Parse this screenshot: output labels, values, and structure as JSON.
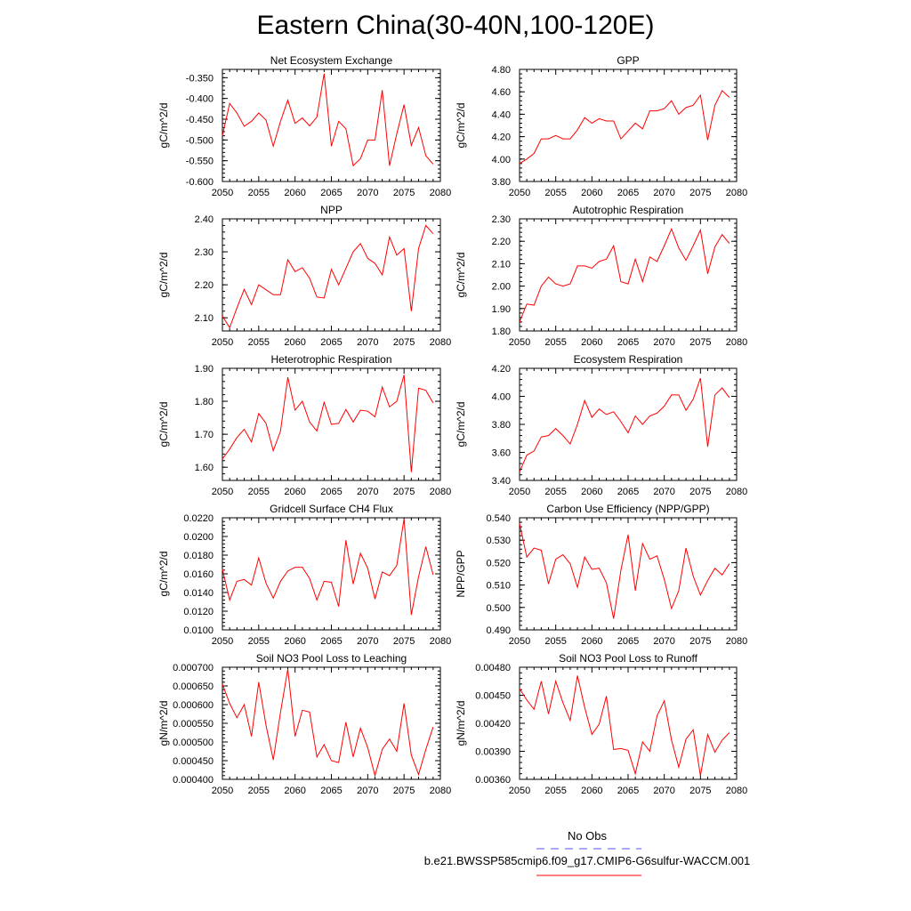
{
  "figure": {
    "title": "Eastern China(30-40N,100-120E)"
  },
  "colors": {
    "series": "#ff0000",
    "obs": "#5050ff"
  },
  "legend": {
    "entries": [
      {
        "label": "No Obs",
        "color": "#5050ff",
        "style": "dashed"
      },
      {
        "label": "b.e21.BWSSP585cmip6.f09_g17.CMIP6-G6sulfur-WACCM.001",
        "color": "#ff0000",
        "style": "solid"
      }
    ]
  },
  "chart_data": [
    {
      "type": "line",
      "title": "Net Ecosystem Exchange",
      "ylabel": "gC/m^2/d",
      "xlim": [
        2050,
        2080
      ],
      "xticks": [
        "2050",
        "2055",
        "2060",
        "2065",
        "2070",
        "2075",
        "2080"
      ],
      "ylim": [
        -0.6,
        -0.33
      ],
      "yticks": [
        "-0.350",
        "-0.400",
        "-0.450",
        "-0.500",
        "-0.550",
        "-0.600"
      ],
      "ytick_values": [
        -0.35,
        -0.4,
        -0.45,
        -0.5,
        -0.55,
        -0.6
      ],
      "x_start": 2050,
      "values": [
        -0.49,
        -0.412,
        -0.435,
        -0.467,
        -0.455,
        -0.435,
        -0.452,
        -0.515,
        -0.455,
        -0.404,
        -0.46,
        -0.447,
        -0.466,
        -0.445,
        -0.34,
        -0.515,
        -0.455,
        -0.473,
        -0.562,
        -0.545,
        -0.5,
        -0.5,
        -0.38,
        -0.562,
        -0.485,
        -0.415,
        -0.513,
        -0.47,
        -0.538,
        -0.558
      ]
    },
    {
      "type": "line",
      "title": "GPP",
      "ylabel": "gC/m^2/d",
      "xlim": [
        2050,
        2080
      ],
      "xticks": [
        "2050",
        "2055",
        "2060",
        "2065",
        "2070",
        "2075",
        "2080"
      ],
      "ylim": [
        3.8,
        4.8
      ],
      "yticks": [
        "4.80",
        "4.60",
        "4.40",
        "4.20",
        "4.00",
        "3.80"
      ],
      "ytick_values": [
        4.8,
        4.6,
        4.4,
        4.2,
        4.0,
        3.8
      ],
      "x_start": 2050,
      "values": [
        3.96,
        4.0,
        4.05,
        4.18,
        4.18,
        4.21,
        4.18,
        4.18,
        4.26,
        4.37,
        4.32,
        4.36,
        4.34,
        4.34,
        4.18,
        4.25,
        4.32,
        4.27,
        4.43,
        4.43,
        4.45,
        4.52,
        4.4,
        4.46,
        4.48,
        4.57,
        4.17,
        4.48,
        4.61,
        4.55
      ]
    },
    {
      "type": "line",
      "title": "NPP",
      "ylabel": "gC/m^2/d",
      "xlim": [
        2050,
        2080
      ],
      "xticks": [
        "2050",
        "2055",
        "2060",
        "2065",
        "2070",
        "2075",
        "2080"
      ],
      "ylim": [
        2.06,
        2.4
      ],
      "yticks": [
        "2.40",
        "2.30",
        "2.20",
        "2.10"
      ],
      "ytick_values": [
        2.4,
        2.3,
        2.2,
        2.1
      ],
      "x_start": 2050,
      "values": [
        2.105,
        2.07,
        2.13,
        2.186,
        2.14,
        2.2,
        2.185,
        2.17,
        2.17,
        2.276,
        2.24,
        2.252,
        2.22,
        2.163,
        2.16,
        2.247,
        2.2,
        2.25,
        2.3,
        2.325,
        2.28,
        2.265,
        2.23,
        2.345,
        2.29,
        2.31,
        2.12,
        2.31,
        2.38,
        2.355
      ]
    },
    {
      "type": "line",
      "title": "Autotrophic Respiration",
      "ylabel": "gC/m^2/d",
      "xlim": [
        2050,
        2080
      ],
      "xticks": [
        "2050",
        "2055",
        "2060",
        "2065",
        "2070",
        "2075",
        "2080"
      ],
      "ylim": [
        1.8,
        2.3
      ],
      "yticks": [
        "2.30",
        "2.20",
        "2.10",
        "2.00",
        "1.90",
        "1.80"
      ],
      "ytick_values": [
        2.3,
        2.2,
        2.1,
        2.0,
        1.9,
        1.8
      ],
      "x_start": 2050,
      "values": [
        1.84,
        1.92,
        1.915,
        2.0,
        2.04,
        2.01,
        2.0,
        2.01,
        2.09,
        2.09,
        2.08,
        2.11,
        2.12,
        2.18,
        2.02,
        2.01,
        2.12,
        2.02,
        2.13,
        2.11,
        2.18,
        2.255,
        2.17,
        2.115,
        2.18,
        2.25,
        2.055,
        2.175,
        2.23,
        2.19
      ]
    },
    {
      "type": "line",
      "title": "Heterotrophic Respiration",
      "ylabel": "gC/m^2/d",
      "xlim": [
        2050,
        2080
      ],
      "xticks": [
        "2050",
        "2055",
        "2060",
        "2065",
        "2070",
        "2075",
        "2080"
      ],
      "ylim": [
        1.56,
        1.9
      ],
      "yticks": [
        "1.90",
        "1.80",
        "1.70",
        "1.60"
      ],
      "ytick_values": [
        1.9,
        1.8,
        1.7,
        1.6
      ],
      "x_start": 2050,
      "values": [
        1.625,
        1.655,
        1.69,
        1.715,
        1.677,
        1.763,
        1.733,
        1.65,
        1.71,
        1.873,
        1.773,
        1.8,
        1.737,
        1.71,
        1.797,
        1.73,
        1.733,
        1.775,
        1.737,
        1.773,
        1.77,
        1.753,
        1.843,
        1.783,
        1.8,
        1.88,
        1.585,
        1.84,
        1.833,
        1.795
      ]
    },
    {
      "type": "line",
      "title": "Ecosystem Respiration",
      "ylabel": "gC/m^2/d",
      "xlim": [
        2050,
        2080
      ],
      "xticks": [
        "2050",
        "2055",
        "2060",
        "2065",
        "2070",
        "2075",
        "2080"
      ],
      "ylim": [
        3.4,
        4.2
      ],
      "yticks": [
        "4.20",
        "4.00",
        "3.80",
        "3.60",
        "3.40"
      ],
      "ytick_values": [
        4.2,
        4.0,
        3.8,
        3.6,
        3.4
      ],
      "x_start": 2050,
      "values": [
        3.46,
        3.58,
        3.61,
        3.71,
        3.72,
        3.77,
        3.72,
        3.66,
        3.8,
        3.97,
        3.85,
        3.91,
        3.87,
        3.89,
        3.82,
        3.74,
        3.86,
        3.8,
        3.86,
        3.88,
        3.93,
        4.01,
        4.01,
        3.9,
        3.98,
        4.13,
        3.64,
        4.01,
        4.06,
        3.99
      ]
    },
    {
      "type": "line",
      "title": "Gridcell Surface CH4 Flux",
      "ylabel": "gC/m^2/d",
      "xlim": [
        2050,
        2080
      ],
      "xticks": [
        "2050",
        "2055",
        "2060",
        "2065",
        "2070",
        "2075",
        "2080"
      ],
      "ylim": [
        0.01,
        0.022
      ],
      "yticks": [
        "0.0220",
        "0.0200",
        "0.0180",
        "0.0160",
        "0.0140",
        "0.0120",
        "0.0100"
      ],
      "ytick_values": [
        0.022,
        0.02,
        0.018,
        0.016,
        0.014,
        0.012,
        0.01
      ],
      "x_start": 2050,
      "values": [
        0.0165,
        0.0132,
        0.0152,
        0.0154,
        0.0148,
        0.0177,
        0.015,
        0.0134,
        0.0152,
        0.0163,
        0.0167,
        0.0167,
        0.0155,
        0.0132,
        0.0152,
        0.0151,
        0.0125,
        0.0196,
        0.0149,
        0.0182,
        0.0166,
        0.0133,
        0.0162,
        0.0158,
        0.0169,
        0.0219,
        0.0116,
        0.0157,
        0.0189,
        0.0159
      ]
    },
    {
      "type": "line",
      "title": "Carbon Use Efficiency (NPP/GPP)",
      "ylabel": "NPP/GPP",
      "xlim": [
        2050,
        2080
      ],
      "xticks": [
        "2050",
        "2055",
        "2060",
        "2065",
        "2070",
        "2075",
        "2080"
      ],
      "ylim": [
        0.49,
        0.54
      ],
      "yticks": [
        "0.540",
        "0.530",
        "0.520",
        "0.510",
        "0.500",
        "0.490"
      ],
      "ytick_values": [
        0.54,
        0.53,
        0.52,
        0.51,
        0.5,
        0.49
      ],
      "x_start": 2050,
      "values": [
        0.5375,
        0.5225,
        0.5265,
        0.5255,
        0.5105,
        0.5215,
        0.5235,
        0.5195,
        0.509,
        0.5225,
        0.517,
        0.5175,
        0.511,
        0.495,
        0.5165,
        0.5325,
        0.5075,
        0.5285,
        0.5215,
        0.523,
        0.5125,
        0.4995,
        0.5075,
        0.5265,
        0.514,
        0.5055,
        0.512,
        0.5175,
        0.5145,
        0.5195
      ]
    },
    {
      "type": "line",
      "title": "Soil NO3 Pool Loss to Leaching",
      "ylabel": "gN/m^2/d",
      "xlim": [
        2050,
        2080
      ],
      "xticks": [
        "2050",
        "2055",
        "2060",
        "2065",
        "2070",
        "2075",
        "2080"
      ],
      "ylim": [
        0.0004,
        0.0007
      ],
      "yticks": [
        "0.000700",
        "0.000650",
        "0.000600",
        "0.000550",
        "0.000500",
        "0.000450",
        "0.000400"
      ],
      "ytick_values": [
        0.0007,
        0.00065,
        0.0006,
        0.00055,
        0.0005,
        0.00045,
        0.0004
      ],
      "x_start": 2050,
      "values": [
        0.000655,
        0.000603,
        0.000565,
        0.0006,
        0.000515,
        0.00066,
        0.000545,
        0.000452,
        0.00058,
        0.000695,
        0.000515,
        0.000585,
        0.00058,
        0.00046,
        0.000493,
        0.00045,
        0.000445,
        0.000553,
        0.00046,
        0.000537,
        0.000485,
        0.00041,
        0.00048,
        0.000508,
        0.000475,
        0.000603,
        0.000465,
        0.000413,
        0.00048,
        0.00054
      ]
    },
    {
      "type": "line",
      "title": "Soil NO3 Pool Loss to Runoff",
      "ylabel": "gN/m^2/d",
      "xlim": [
        2050,
        2080
      ],
      "xticks": [
        "2050",
        "2055",
        "2060",
        "2065",
        "2070",
        "2075",
        "2080"
      ],
      "ylim": [
        0.0036,
        0.0048
      ],
      "yticks": [
        "0.00480",
        "0.00450",
        "0.00420",
        "0.00390",
        "0.00360"
      ],
      "ytick_values": [
        0.0048,
        0.0045,
        0.0042,
        0.0039,
        0.0036
      ],
      "x_start": 2050,
      "values": [
        0.00457,
        0.00445,
        0.00435,
        0.00465,
        0.0043,
        0.00465,
        0.00442,
        0.00423,
        0.00471,
        0.00437,
        0.00408,
        0.00419,
        0.00449,
        0.00392,
        0.00393,
        0.00391,
        0.00366,
        0.004,
        0.0039,
        0.00428,
        0.00444,
        0.00402,
        0.00373,
        0.00403,
        0.00413,
        0.00364,
        0.00408,
        0.00389,
        0.00402,
        0.0041
      ]
    }
  ]
}
